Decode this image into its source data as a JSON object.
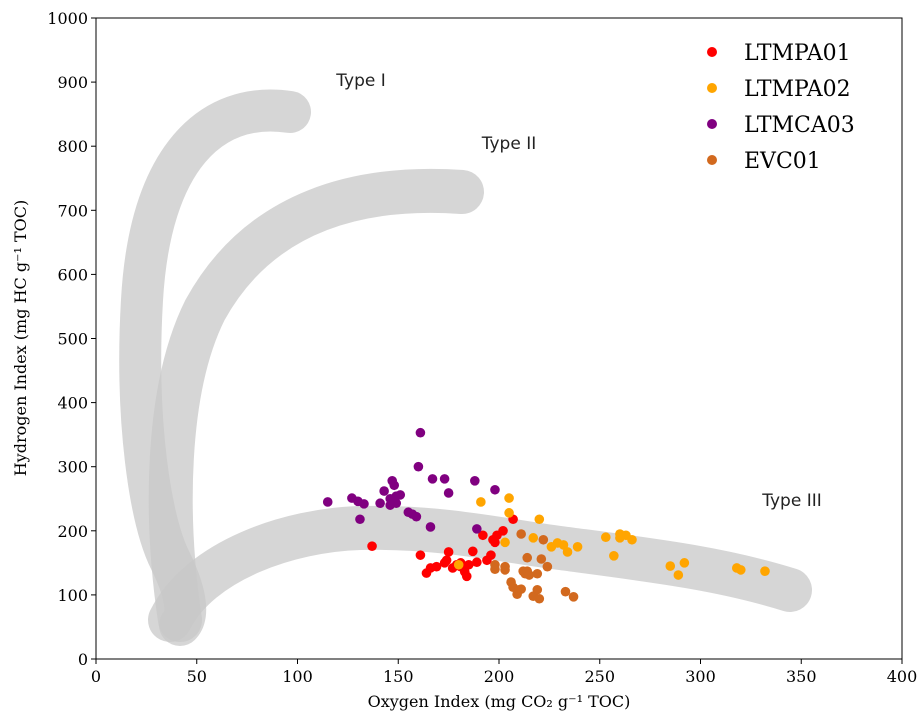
{
  "chart_data": {
    "type": "scatter",
    "x_label": "Oxygen Index (mg CO₂ g⁻¹ TOC)",
    "y_label": "Hydrogen Index (mg HC g⁻¹ TOC)",
    "annotations": [
      "Type I",
      "Type II",
      "Type III"
    ],
    "xlim": [
      0,
      400
    ],
    "ylim": [
      0,
      1000
    ],
    "xticks": [
      0,
      50,
      100,
      150,
      200,
      250,
      300,
      350,
      400
    ],
    "yticks": [
      0,
      100,
      200,
      300,
      400,
      500,
      600,
      700,
      800,
      900,
      1000
    ],
    "legend": "upper right",
    "series": [
      {
        "name": "LTMPA01",
        "color": "#ff0000",
        "x": [
          137,
          161,
          164,
          166,
          169,
          173,
          174,
          175,
          177,
          179,
          181,
          183,
          184,
          187,
          189,
          192,
          194,
          196,
          197,
          198,
          199,
          202,
          207,
          185,
          181
        ],
        "values": [
          176,
          162,
          134,
          142,
          144,
          150,
          154,
          167,
          142,
          147,
          144,
          136,
          129,
          168,
          151,
          193,
          154,
          162,
          186,
          182,
          193,
          200,
          218,
          147,
          150
        ]
      },
      {
        "name": "LTMPA02",
        "color": "#ffa500",
        "x": [
          191,
          205,
          205,
          203,
          220,
          217,
          226,
          229,
          232,
          234,
          239,
          253,
          257,
          260,
          263,
          266,
          285,
          289,
          292,
          318,
          320,
          332,
          180,
          260
        ],
        "values": [
          245,
          228,
          251,
          182,
          218,
          189,
          175,
          181,
          178,
          167,
          175,
          190,
          161,
          195,
          193,
          186,
          145,
          131,
          150,
          142,
          139,
          137,
          147,
          189
        ]
      },
      {
        "name": "LTMCA03",
        "color": "#800080",
        "x": [
          115,
          127,
          130,
          133,
          131,
          143,
          146,
          147,
          148,
          149,
          151,
          141,
          146,
          149,
          155,
          157,
          159,
          160,
          161,
          166,
          167,
          173,
          175,
          188,
          198,
          189
        ],
        "values": [
          245,
          251,
          246,
          242,
          218,
          262,
          250,
          278,
          271,
          254,
          256,
          243,
          240,
          243,
          229,
          226,
          222,
          300,
          353,
          206,
          281,
          281,
          259,
          278,
          264,
          203
        ]
      },
      {
        "name": "EVC01",
        "color": "#d2691e",
        "x": [
          198,
          198,
          203,
          203,
          206,
          207,
          209,
          210,
          211,
          212,
          213,
          214,
          214,
          215,
          217,
          219,
          219,
          220,
          221,
          224,
          233,
          237,
          211,
          222
        ],
        "values": [
          147,
          140,
          139,
          144,
          120,
          112,
          101,
          108,
          195,
          137,
          133,
          158,
          137,
          131,
          98,
          108,
          133,
          94,
          156,
          144,
          105,
          97,
          109,
          186
        ]
      }
    ]
  }
}
